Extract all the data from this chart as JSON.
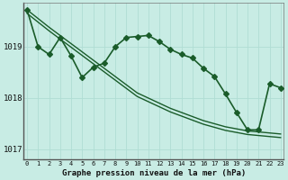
{
  "background_color": "#c8ece4",
  "plot_bg_color": "#c8ece4",
  "grid_color": "#b0ddd4",
  "line_color": "#1a5c2a",
  "xlabel": "Graphe pression niveau de la mer (hPa)",
  "ylim": [
    1016.8,
    1019.85
  ],
  "xlim": [
    -0.3,
    23.3
  ],
  "yticks": [
    1017,
    1018,
    1019
  ],
  "xticks": [
    0,
    1,
    2,
    3,
    4,
    5,
    6,
    7,
    8,
    9,
    10,
    11,
    12,
    13,
    14,
    15,
    16,
    17,
    18,
    19,
    20,
    21,
    22,
    23
  ],
  "series": [
    {
      "x": [
        0,
        1,
        2,
        3,
        4,
        5,
        6,
        7,
        8,
        9,
        10,
        11,
        12,
        13,
        14,
        15,
        16,
        17,
        18,
        19,
        20,
        21,
        22,
        23
      ],
      "y": [
        1019.72,
        1019.55,
        1019.38,
        1019.22,
        1019.06,
        1018.9,
        1018.74,
        1018.58,
        1018.42,
        1018.26,
        1018.1,
        1018.0,
        1017.9,
        1017.8,
        1017.72,
        1017.64,
        1017.56,
        1017.5,
        1017.44,
        1017.4,
        1017.36,
        1017.34,
        1017.32,
        1017.3
      ],
      "style": "-",
      "marker": null,
      "lw": 1.0
    },
    {
      "x": [
        0,
        1,
        2,
        3,
        4,
        5,
        6,
        7,
        8,
        9,
        10,
        11,
        12,
        13,
        14,
        15,
        16,
        17,
        18,
        19,
        20,
        21,
        22,
        23
      ],
      "y": [
        1019.65,
        1019.48,
        1019.31,
        1019.15,
        1018.99,
        1018.83,
        1018.67,
        1018.51,
        1018.35,
        1018.19,
        1018.03,
        1017.93,
        1017.83,
        1017.73,
        1017.65,
        1017.57,
        1017.49,
        1017.43,
        1017.37,
        1017.33,
        1017.29,
        1017.27,
        1017.25,
        1017.23
      ],
      "style": "-",
      "marker": null,
      "lw": 1.0
    },
    {
      "x": [
        0,
        1,
        2,
        3,
        4,
        5,
        6,
        7,
        8,
        9,
        10,
        11,
        12,
        13,
        14,
        15,
        16,
        17,
        18,
        19,
        20,
        21,
        22,
        23
      ],
      "y": [
        1019.72,
        1019.0,
        1018.85,
        1019.18,
        1018.82,
        1018.4,
        1018.6,
        1018.68,
        1019.0,
        1019.18,
        1019.2,
        1019.22,
        1019.1,
        1018.95,
        1018.85,
        1018.78,
        1018.58,
        1018.42,
        1018.08,
        1017.72,
        1017.38,
        1017.38,
        1018.28,
        1018.2
      ],
      "style": "-",
      "marker": "D",
      "lw": 1.2
    }
  ]
}
